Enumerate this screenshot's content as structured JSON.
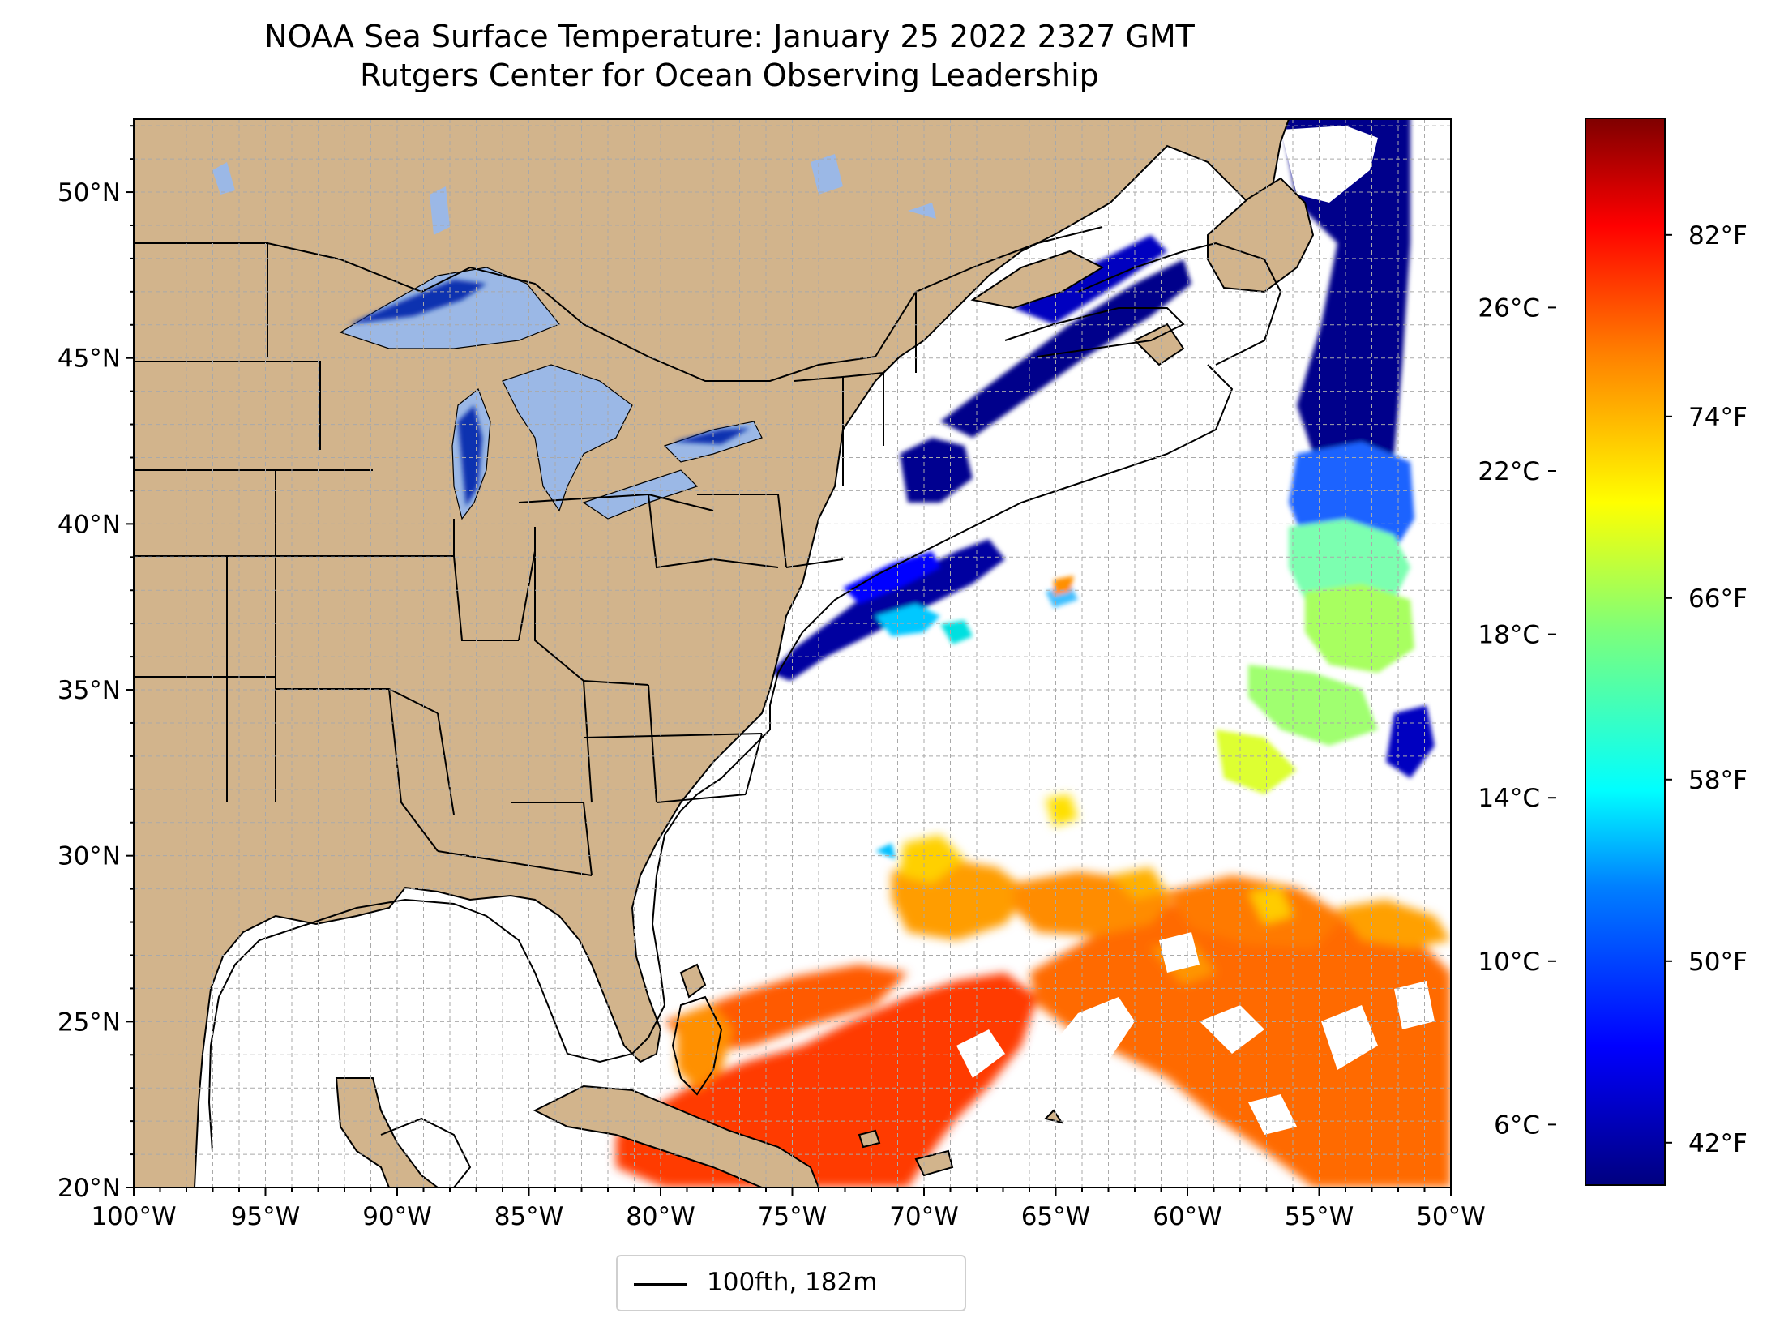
{
  "title": {
    "line1": "NOAA Sea Surface Temperature: January 25 2022 2327 GMT",
    "line2": "Rutgers Center for Ocean Observing Leadership"
  },
  "map": {
    "projection": "Plate Carree",
    "lon_range": [
      -100,
      -50
    ],
    "lat_range": [
      20,
      52.2
    ],
    "lat_ticks": [
      {
        "value": 50,
        "label": "50°N"
      },
      {
        "value": 45,
        "label": "45°N"
      },
      {
        "value": 40,
        "label": "40°N"
      },
      {
        "value": 35,
        "label": "35°N"
      },
      {
        "value": 30,
        "label": "30°N"
      },
      {
        "value": 25,
        "label": "25°N"
      },
      {
        "value": 20,
        "label": "20°N"
      }
    ],
    "lon_ticks": [
      {
        "value": -100,
        "label": "100°W"
      },
      {
        "value": -95,
        "label": "95°W"
      },
      {
        "value": -90,
        "label": "90°W"
      },
      {
        "value": -85,
        "label": "85°W"
      },
      {
        "value": -80,
        "label": "80°W"
      },
      {
        "value": -75,
        "label": "75°W"
      },
      {
        "value": -70,
        "label": "70°W"
      },
      {
        "value": -65,
        "label": "65°W"
      },
      {
        "value": -60,
        "label": "60°W"
      },
      {
        "value": -55,
        "label": "55°W"
      },
      {
        "value": -50,
        "label": "50°W"
      }
    ],
    "grid": "dashed, 1° spacing",
    "land_color": "#d2b48c",
    "lake_color": "#9bb8e6",
    "ocean_color": "#ffffff"
  },
  "legend": {
    "label": "100fth, 182m",
    "placement": "bottom-center"
  },
  "colorbar": {
    "colormap": "jet",
    "celsius_ticks": [
      {
        "value": 26,
        "label": "26°C"
      },
      {
        "value": 22,
        "label": "22°C"
      },
      {
        "value": 18,
        "label": "18°C"
      },
      {
        "value": 14,
        "label": "14°C"
      },
      {
        "value": 10,
        "label": "10°C"
      },
      {
        "value": 6,
        "label": "6°C"
      }
    ],
    "fahrenheit_ticks": [
      {
        "value": 82,
        "label": "82°F"
      },
      {
        "value": 74,
        "label": "74°F"
      },
      {
        "value": 66,
        "label": "66°F"
      },
      {
        "value": 58,
        "label": "58°F"
      },
      {
        "value": 50,
        "label": "50°F"
      },
      {
        "value": 42,
        "label": "42°F"
      }
    ]
  }
}
